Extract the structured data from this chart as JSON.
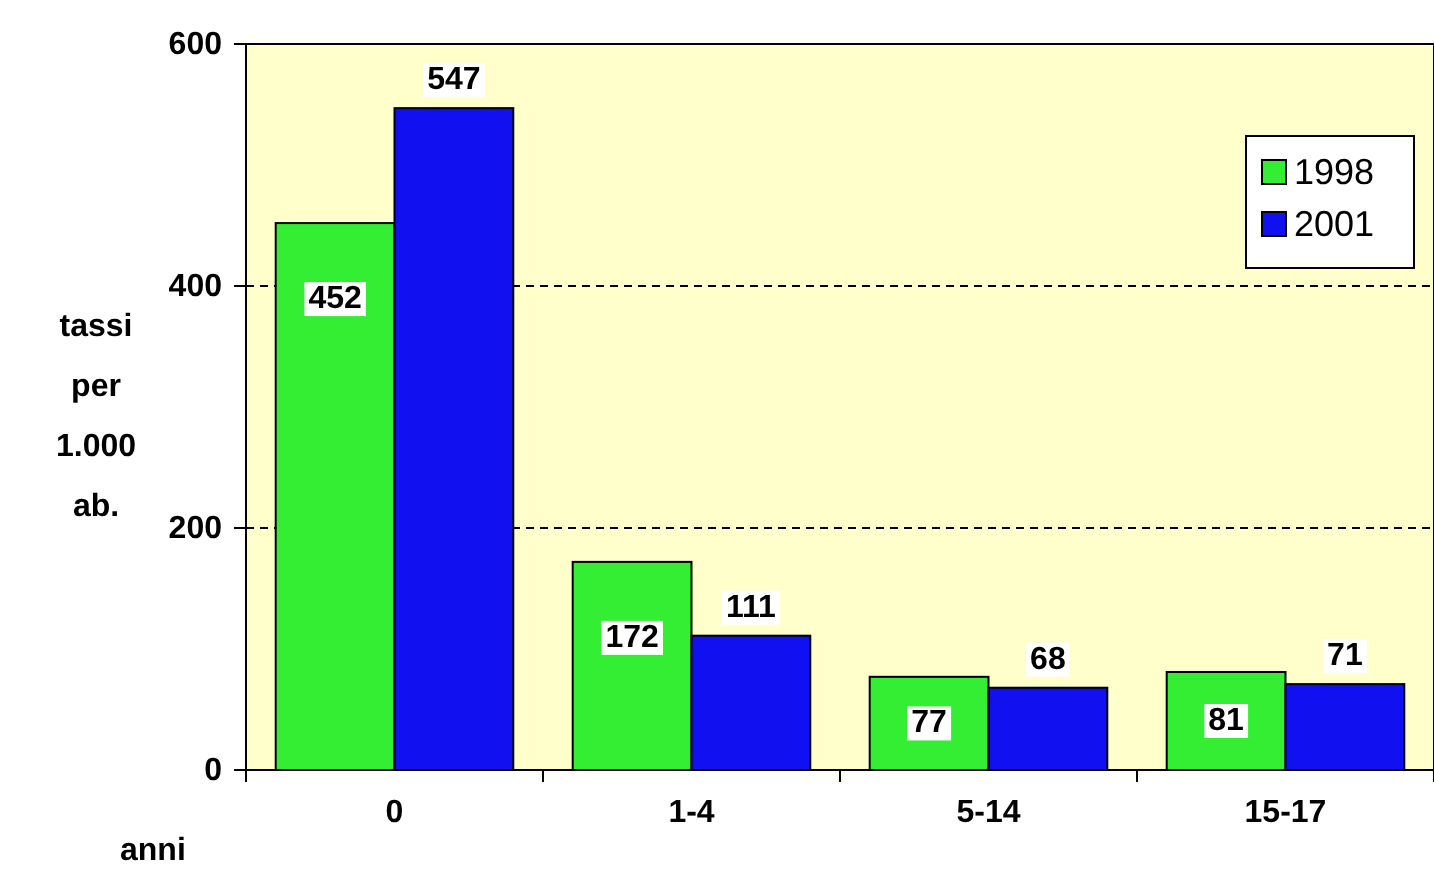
{
  "chart_data": {
    "type": "bar",
    "xlabel": "anni",
    "ylabel": "tassi per 1.000 ab.",
    "categories": [
      "0",
      "1-4",
      "5-14",
      "15-17"
    ],
    "series": [
      {
        "name": "1998",
        "color": "#33ee33",
        "values": [
          452,
          172,
          77,
          81
        ]
      },
      {
        "name": "2001",
        "color": "#1010f0",
        "values": [
          547,
          111,
          68,
          71
        ]
      }
    ],
    "ylim": [
      0,
      600
    ],
    "yticks": [
      0,
      200,
      400,
      600
    ],
    "grid": "y",
    "legend": "top right",
    "data_labels": true
  }
}
